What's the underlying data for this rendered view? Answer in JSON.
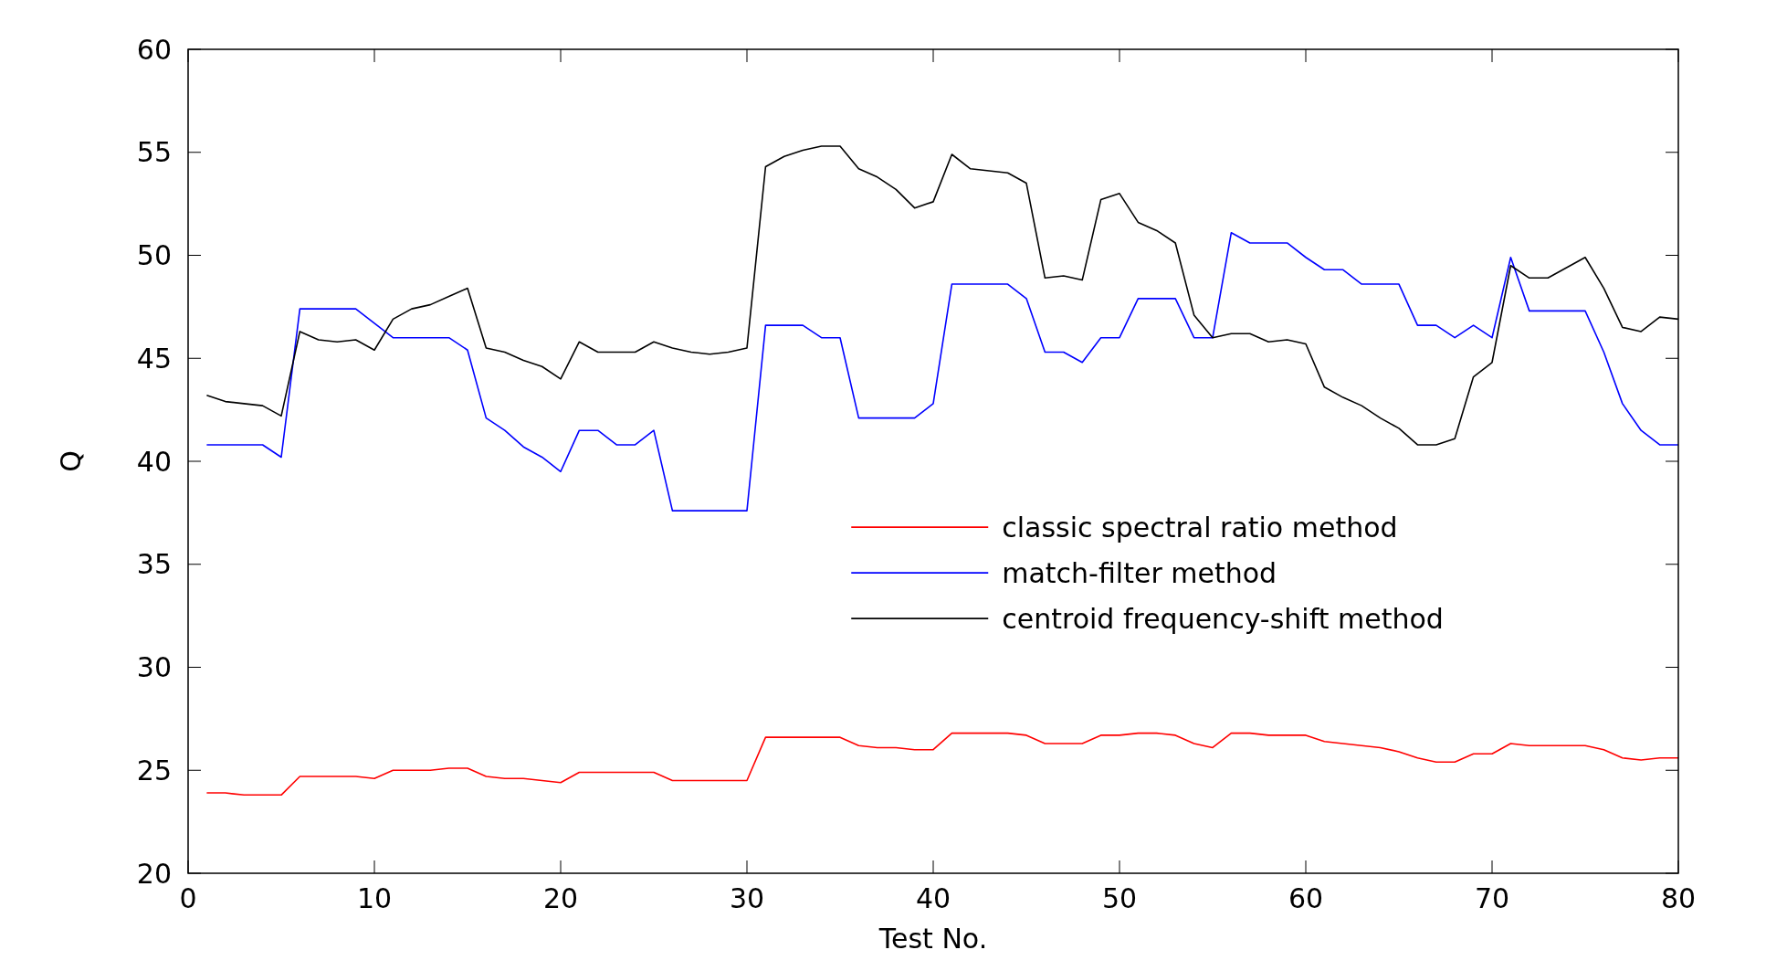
{
  "chart_data": {
    "type": "line",
    "xlabel": "Test No.",
    "ylabel": "Q",
    "x": [
      1,
      2,
      3,
      4,
      5,
      6,
      7,
      8,
      9,
      10,
      11,
      12,
      13,
      14,
      15,
      16,
      17,
      18,
      19,
      20,
      21,
      22,
      23,
      24,
      25,
      26,
      27,
      28,
      29,
      30,
      31,
      32,
      33,
      34,
      35,
      36,
      37,
      38,
      39,
      40,
      41,
      42,
      43,
      44,
      45,
      46,
      47,
      48,
      49,
      50,
      51,
      52,
      53,
      54,
      55,
      56,
      57,
      58,
      59,
      60,
      61,
      62,
      63,
      64,
      65,
      66,
      67,
      68,
      69,
      70,
      71,
      72,
      73,
      74,
      75,
      76,
      77,
      78,
      79,
      80
    ],
    "series": [
      {
        "name": "classic spectral ratio method",
        "color": "#ff0000",
        "values": [
          23.9,
          23.9,
          23.8,
          23.8,
          23.8,
          24.7,
          24.7,
          24.7,
          24.7,
          24.6,
          25.0,
          25.0,
          25.0,
          25.1,
          25.1,
          24.7,
          24.6,
          24.6,
          24.5,
          24.4,
          24.9,
          24.9,
          24.9,
          24.9,
          24.9,
          24.5,
          24.5,
          24.5,
          24.5,
          24.5,
          26.6,
          26.6,
          26.6,
          26.6,
          26.6,
          26.2,
          26.1,
          26.1,
          26.0,
          26.0,
          26.8,
          26.8,
          26.8,
          26.8,
          26.7,
          26.3,
          26.3,
          26.3,
          26.7,
          26.7,
          26.8,
          26.8,
          26.7,
          26.3,
          26.1,
          26.8,
          26.8,
          26.7,
          26.7,
          26.7,
          26.4,
          26.3,
          26.2,
          26.1,
          25.9,
          25.6,
          25.4,
          25.4,
          25.8,
          25.8,
          26.3,
          26.2,
          26.2,
          26.2,
          26.2,
          26.0,
          25.6,
          25.5,
          25.6,
          25.6
        ]
      },
      {
        "name": "match-filter method",
        "color": "#0000ff",
        "values": [
          40.8,
          40.8,
          40.8,
          40.8,
          40.2,
          47.4,
          47.4,
          47.4,
          47.4,
          46.7,
          46.0,
          46.0,
          46.0,
          46.0,
          45.4,
          42.1,
          41.5,
          40.7,
          40.2,
          39.5,
          41.5,
          41.5,
          40.8,
          40.8,
          41.5,
          37.6,
          37.6,
          37.6,
          37.6,
          37.6,
          46.6,
          46.6,
          46.6,
          46.0,
          46.0,
          42.1,
          42.1,
          42.1,
          42.1,
          42.8,
          48.6,
          48.6,
          48.6,
          48.6,
          47.9,
          45.3,
          45.3,
          44.8,
          46.0,
          46.0,
          47.9,
          47.9,
          47.9,
          46.0,
          46.0,
          51.1,
          50.6,
          50.6,
          50.6,
          49.9,
          49.3,
          49.3,
          48.6,
          48.6,
          48.6,
          46.6,
          46.6,
          46.0,
          46.6,
          46.0,
          49.9,
          47.3,
          47.3,
          47.3,
          47.3,
          45.3,
          42.8,
          41.5,
          40.8,
          40.8
        ]
      },
      {
        "name": "centroid frequency-shift method",
        "color": "#000000",
        "values": [
          43.2,
          42.9,
          42.8,
          42.7,
          42.2,
          46.3,
          45.9,
          45.8,
          45.9,
          45.4,
          46.9,
          47.4,
          47.6,
          48.0,
          48.4,
          45.5,
          45.3,
          44.9,
          44.6,
          44.0,
          45.8,
          45.3,
          45.3,
          45.3,
          45.8,
          45.5,
          45.3,
          45.2,
          45.3,
          45.5,
          54.3,
          54.8,
          55.1,
          55.3,
          55.3,
          54.2,
          53.8,
          53.2,
          52.3,
          52.6,
          54.9,
          54.2,
          54.1,
          54.0,
          53.5,
          48.9,
          49.0,
          48.8,
          52.7,
          53.0,
          51.6,
          51.2,
          50.6,
          47.1,
          46.0,
          46.2,
          46.2,
          45.8,
          45.9,
          45.7,
          43.6,
          43.1,
          42.7,
          42.1,
          41.6,
          40.8,
          40.8,
          41.1,
          44.1,
          44.8,
          49.5,
          48.9,
          48.9,
          49.4,
          49.9,
          48.4,
          46.5,
          46.3,
          47.0,
          46.9
        ]
      }
    ],
    "xlim": [
      0,
      80
    ],
    "xticks": [
      0,
      10,
      20,
      30,
      40,
      50,
      60,
      70,
      80
    ],
    "ylim": [
      20,
      60
    ],
    "yticks": [
      20,
      25,
      30,
      35,
      40,
      45,
      50,
      55,
      60
    ],
    "grid": false,
    "legend": "right",
    "marker": "none",
    "line_style": "solid"
  }
}
